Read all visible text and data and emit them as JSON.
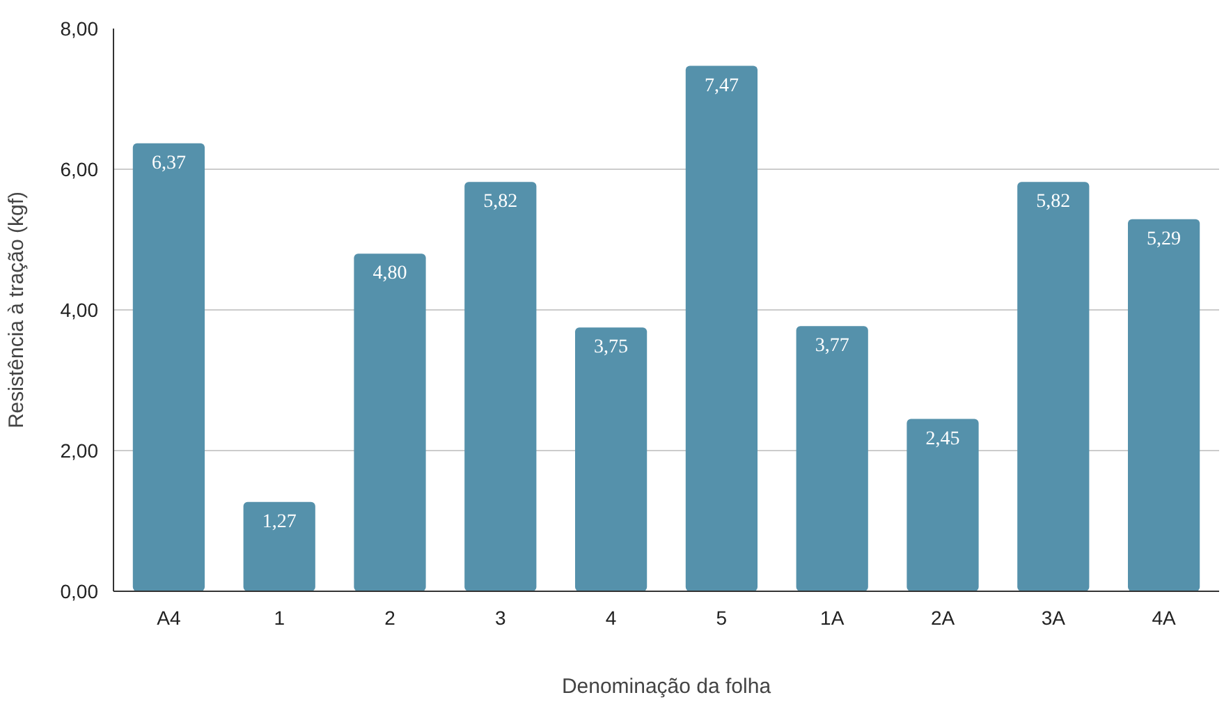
{
  "chart_data": {
    "type": "bar",
    "xlabel": "Denominação da folha",
    "ylabel": "Resistência à tração (kgf)",
    "categories": [
      "A4",
      "1",
      "2",
      "3",
      "4",
      "5",
      "1A",
      "2A",
      "3A",
      "4A"
    ],
    "values": [
      6.37,
      1.27,
      4.8,
      5.82,
      3.75,
      7.47,
      3.77,
      2.45,
      5.82,
      5.29
    ],
    "value_labels": [
      "6,37",
      "1,27",
      "4,80",
      "5,82",
      "3,75",
      "7,47",
      "3,77",
      "2,45",
      "5,82",
      "5,29"
    ],
    "color": "#5591ab",
    "ylim": [
      0,
      8
    ],
    "yticks": [
      {
        "value": 0,
        "label": "0,00"
      },
      {
        "value": 2,
        "label": "2,00"
      },
      {
        "value": 4,
        "label": "4,00"
      },
      {
        "value": 6,
        "label": "6,00"
      },
      {
        "value": 8,
        "label": "8,00"
      }
    ],
    "grid": "y"
  }
}
